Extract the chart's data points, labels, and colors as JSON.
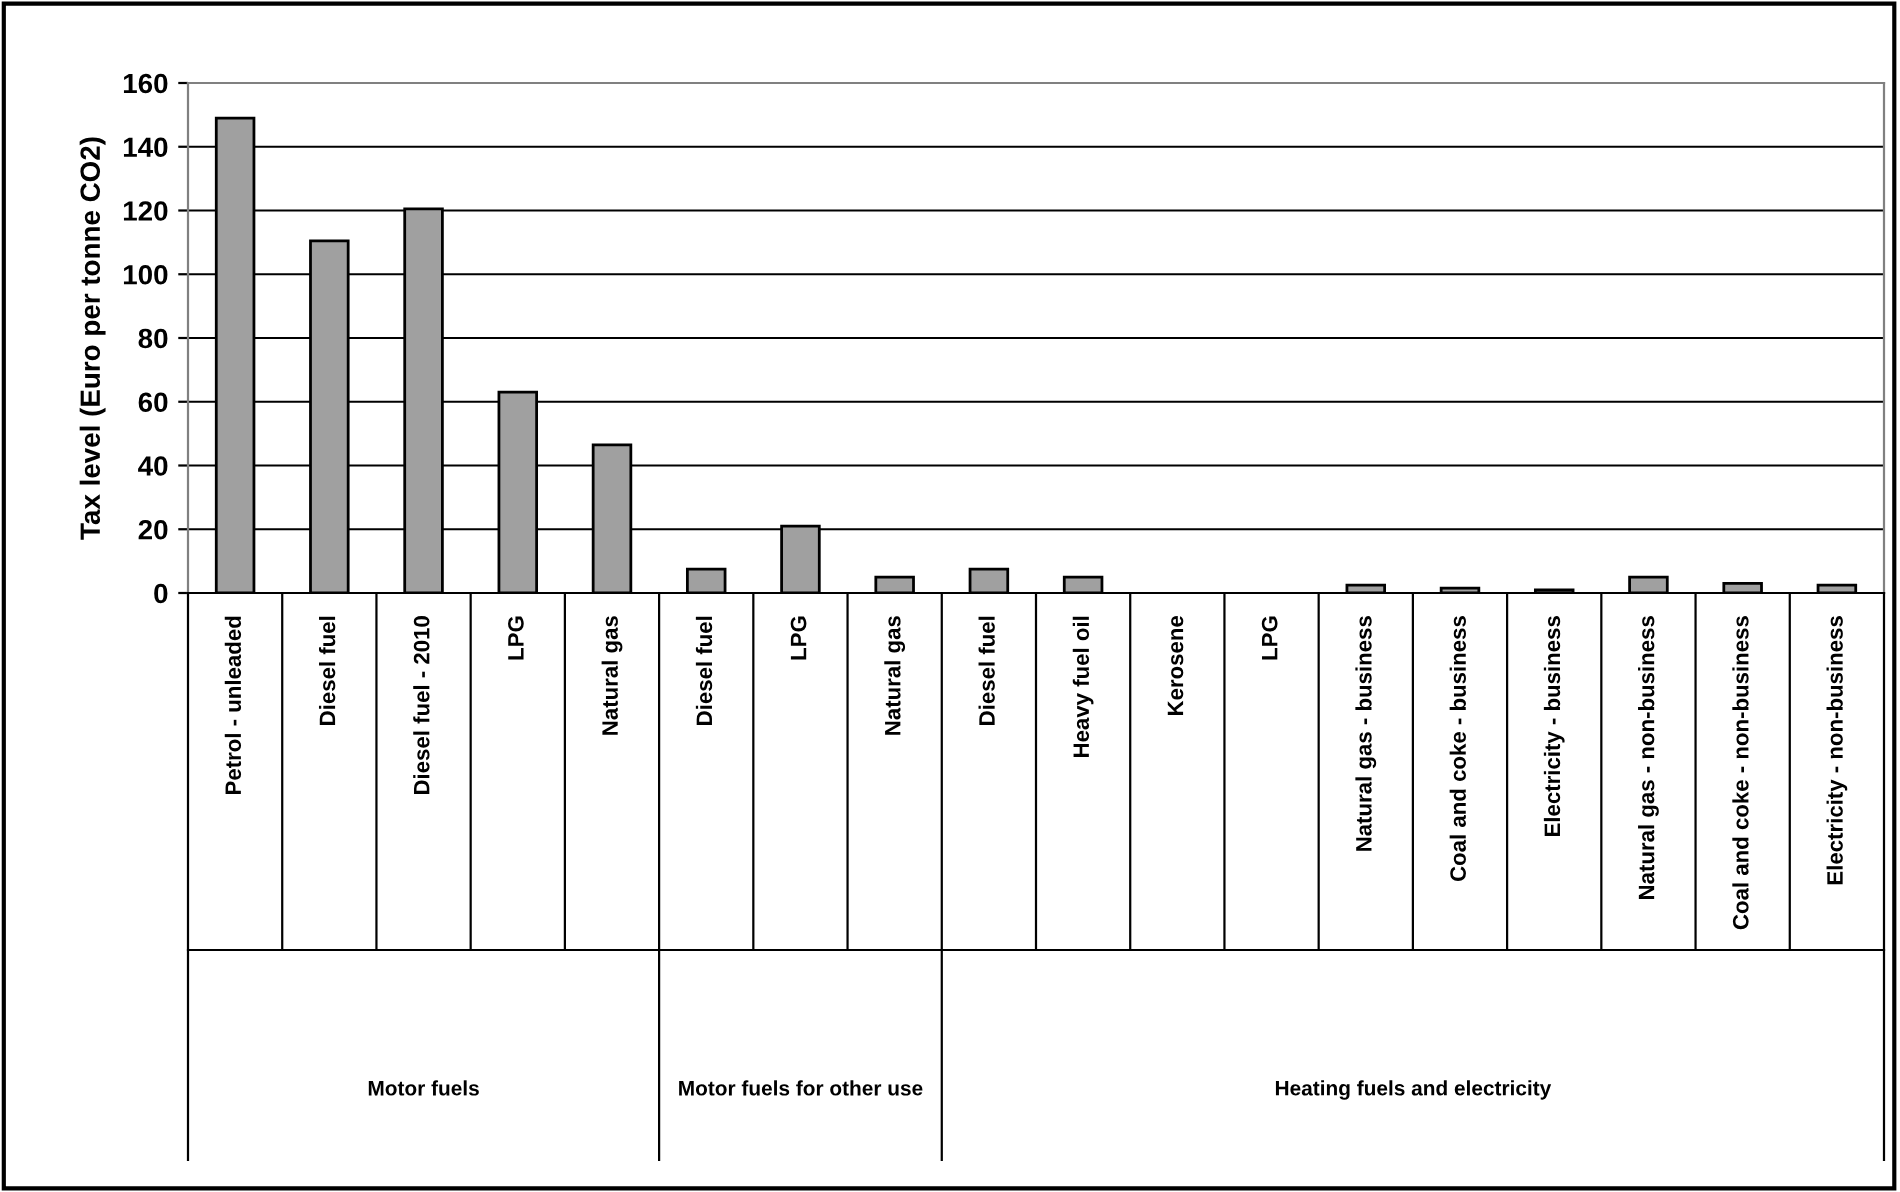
{
  "chart_data": {
    "type": "bar",
    "ylabel": "Tax level (Euro per tonne CO2)",
    "categories": [
      "Petrol - unleaded",
      "Diesel fuel",
      "Diesel fuel - 2010",
      "LPG",
      "Natural gas",
      "Diesel fuel",
      "LPG",
      "Natural gas",
      "Diesel fuel",
      "Heavy fuel oil",
      "Kerosene",
      "LPG",
      "Natural gas - business",
      "Coal and coke - business",
      "Electricity - business",
      "Natural gas - non-business",
      "Coal and coke - non-business",
      "Electricity - non-business"
    ],
    "values": [
      149,
      110.5,
      120.5,
      63,
      46.5,
      7.5,
      21,
      5,
      7.5,
      5,
      0,
      0,
      2.5,
      1.5,
      1,
      5,
      3,
      2.5
    ],
    "color": "#a0a0a0",
    "ylim": [
      0,
      160
    ],
    "yticks": [
      0,
      20,
      40,
      60,
      80,
      100,
      120,
      140,
      160
    ],
    "grid": "y",
    "annotations": [
      "Motor fuels",
      "Motor fuels for other use",
      "Heating fuels and electricity"
    ]
  }
}
